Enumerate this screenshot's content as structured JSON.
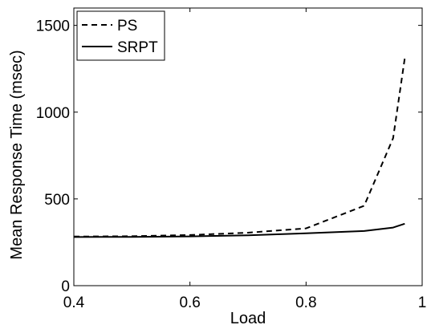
{
  "chart_data": {
    "type": "line",
    "title": "",
    "xlabel": "Load",
    "ylabel": "Mean Response Time (msec)",
    "xlim": [
      0.4,
      1.0
    ],
    "ylim": [
      0,
      1600
    ],
    "xticks": [
      0.4,
      0.6,
      0.8,
      1.0
    ],
    "xtick_labels": [
      "0.4",
      "0.6",
      "0.8",
      "1"
    ],
    "yticks": [
      0,
      500,
      1000,
      1500
    ],
    "ytick_labels": [
      "0",
      "500",
      "1000",
      "1500"
    ],
    "grid": false,
    "legend_position": "top-left",
    "series": [
      {
        "name": "PS",
        "style": "dashed",
        "color": "#000000",
        "x": [
          0.4,
          0.5,
          0.6,
          0.7,
          0.8,
          0.9,
          0.95,
          0.97
        ],
        "y": [
          283,
          285,
          292,
          305,
          330,
          460,
          850,
          1310
        ]
      },
      {
        "name": "SRPT",
        "style": "solid",
        "color": "#000000",
        "x": [
          0.4,
          0.5,
          0.6,
          0.7,
          0.8,
          0.9,
          0.95,
          0.97
        ],
        "y": [
          280,
          281,
          284,
          290,
          302,
          315,
          335,
          357
        ]
      }
    ]
  }
}
